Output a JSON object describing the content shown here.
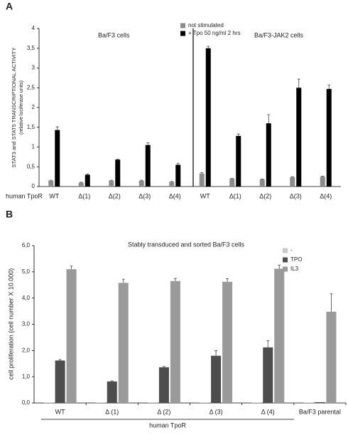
{
  "chart_data": [
    {
      "type": "bar",
      "panel_label": "A",
      "ylabel": "STAT3 and STAT5 TRANSCRIPTIONAL ACTIVITY",
      "ylabel_sub": "(relative luciferase units)",
      "xlabel": "human TpoR",
      "annotations": [
        "Ba/F3 cells",
        "Ba/F3-JAK2 cells"
      ],
      "categories": [
        "WT",
        "Δ(1)",
        "Δ(2)",
        "Δ(3)",
        "Δ(4)",
        "WT",
        "Δ(1)",
        "Δ(2)",
        "Δ(3)",
        "Δ(4)"
      ],
      "series": [
        {
          "name": "not stimulated",
          "color": "#8c8c8c",
          "values": [
            0.15,
            0.1,
            0.15,
            0.15,
            0.12,
            0.33,
            0.2,
            0.18,
            0.24,
            0.25
          ],
          "errors": [
            0.01,
            0.01,
            0.01,
            0.01,
            0.01,
            0.02,
            0.01,
            0.01,
            0.01,
            0.01
          ]
        },
        {
          "name": "+ Tpo 50 ng/ml 2 hrs",
          "color": "#000000",
          "values": [
            1.43,
            0.3,
            0.68,
            1.05,
            0.55,
            3.5,
            1.28,
            1.6,
            2.5,
            2.47
          ],
          "errors": [
            0.08,
            0.02,
            0.01,
            0.06,
            0.04,
            0.05,
            0.05,
            0.22,
            0.22,
            0.1
          ]
        }
      ],
      "ylim": [
        0,
        4
      ],
      "yticks": [
        0,
        {
          "value": 0.5,
          "label": "0,5"
        },
        1,
        {
          "value": 1.5,
          "label": "1,5"
        },
        2,
        {
          "value": 2.5,
          "label": "2,5"
        },
        3,
        {
          "value": 3.5,
          "label": "3,5"
        },
        4
      ],
      "legend": "top"
    },
    {
      "type": "bar",
      "panel_label": "B",
      "title": "Stably transduced and sorted Ba/F3 cells",
      "ylabel": "cell proliferation (cell number X 10.000)",
      "xlabel": "human TpoR",
      "categories": [
        "WT",
        "Δ (1)",
        "Δ (2)",
        "Δ (3)",
        "Δ (4)",
        "Ba/F3 parental"
      ],
      "series": [
        {
          "name": "-",
          "color": "#c8c8c8",
          "values": [
            0.02,
            0.02,
            0.02,
            0.02,
            0.02,
            0.02
          ],
          "errors": [
            0,
            0,
            0,
            0,
            0,
            0
          ]
        },
        {
          "name": "TPO",
          "color": "#4d4d4d",
          "values": [
            1.62,
            0.82,
            1.36,
            1.8,
            2.12,
            0.03
          ],
          "errors": [
            0.04,
            0.02,
            0.03,
            0.2,
            0.25,
            0
          ]
        },
        {
          "name": "IL3",
          "color": "#9a9a9a",
          "values": [
            5.1,
            4.58,
            4.65,
            4.62,
            5.12,
            3.48
          ],
          "errors": [
            0.12,
            0.14,
            0.1,
            0.12,
            0.14,
            0.68
          ]
        }
      ],
      "ylim": [
        0,
        6
      ],
      "yticks": [
        {
          "value": 0,
          "label": "0,0"
        },
        {
          "value": 1,
          "label": "1,0"
        },
        {
          "value": 2,
          "label": "2,0"
        },
        {
          "value": 3,
          "label": "3,0"
        },
        {
          "value": 4,
          "label": "4,0"
        },
        {
          "value": 5,
          "label": "5,0"
        },
        {
          "value": 6,
          "label": "6,0"
        }
      ],
      "legend": "right"
    }
  ]
}
